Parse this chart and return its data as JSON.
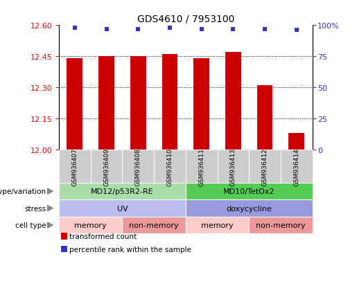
{
  "title": "GDS4610 / 7953100",
  "samples": [
    "GSM936407",
    "GSM936409",
    "GSM936408",
    "GSM936410",
    "GSM936411",
    "GSM936413",
    "GSM936412",
    "GSM936414"
  ],
  "bar_values": [
    12.44,
    12.45,
    12.45,
    12.46,
    12.44,
    12.47,
    12.31,
    12.08
  ],
  "percentile_values": [
    98,
    97,
    97,
    98,
    97,
    97,
    97,
    96
  ],
  "ylim_left": [
    12.0,
    12.6
  ],
  "ylim_right": [
    0,
    100
  ],
  "yticks_left": [
    12.0,
    12.15,
    12.3,
    12.45,
    12.6
  ],
  "yticks_right": [
    0,
    25,
    50,
    75,
    100
  ],
  "bar_color": "#cc0000",
  "dot_color": "#3333cc",
  "annotation_rows": [
    {
      "label": "genotype/variation",
      "groups": [
        {
          "text": "MD12/p53R2-RE",
          "span": [
            0,
            3
          ],
          "color": "#aaddaa"
        },
        {
          "text": "MD10/TetOx2",
          "span": [
            4,
            7
          ],
          "color": "#55cc55"
        }
      ]
    },
    {
      "label": "stress",
      "groups": [
        {
          "text": "UV",
          "span": [
            0,
            3
          ],
          "color": "#bbbbee"
        },
        {
          "text": "doxycycline",
          "span": [
            4,
            7
          ],
          "color": "#9999dd"
        }
      ]
    },
    {
      "label": "cell type",
      "groups": [
        {
          "text": "memory",
          "span": [
            0,
            1
          ],
          "color": "#ffcccc"
        },
        {
          "text": "non-memory",
          "span": [
            2,
            3
          ],
          "color": "#ee9999"
        },
        {
          "text": "memory",
          "span": [
            4,
            5
          ],
          "color": "#ffcccc"
        },
        {
          "text": "non-memory",
          "span": [
            6,
            7
          ],
          "color": "#ee9999"
        }
      ]
    }
  ],
  "legend": [
    {
      "label": "transformed count",
      "color": "#cc0000"
    },
    {
      "label": "percentile rank within the sample",
      "color": "#3333cc"
    }
  ],
  "fig_width": 5.15,
  "fig_height": 4.14,
  "dpi": 100
}
